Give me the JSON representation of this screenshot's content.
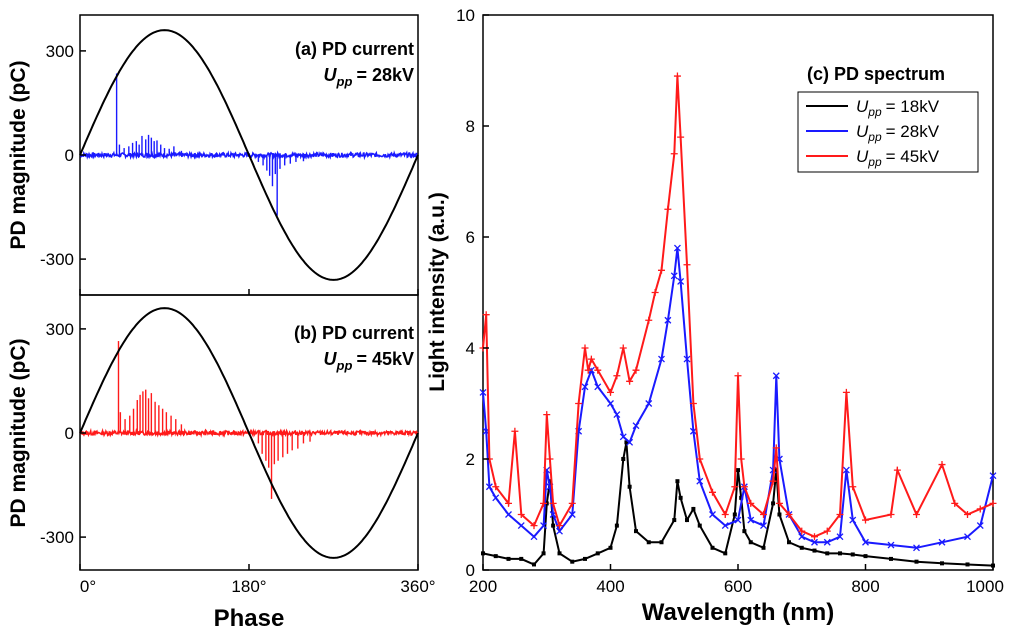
{
  "chart_data": [
    {
      "type": "line",
      "panel": "a",
      "title": "(a) PD current",
      "condition": {
        "var": "U",
        "sub": "pp",
        "value": "= 28kV"
      },
      "xlabel": "",
      "ylabel": "PD magnitude (pC)",
      "xlim": [
        0,
        360
      ],
      "ylim": [
        -400,
        400
      ],
      "yticks": [
        "300",
        "0",
        "-300"
      ],
      "ytick_values": [
        300,
        0,
        -300
      ],
      "reference_sine_amplitude": 360,
      "pd_color": "#1a1aff",
      "sine_color": "#000000",
      "pulses": [
        {
          "x": 39,
          "y": 235
        },
        {
          "x": 42,
          "y": 30
        },
        {
          "x": 47,
          "y": 20
        },
        {
          "x": 52,
          "y": 25
        },
        {
          "x": 56,
          "y": 35
        },
        {
          "x": 60,
          "y": 40
        },
        {
          "x": 63,
          "y": 30
        },
        {
          "x": 66,
          "y": 55
        },
        {
          "x": 70,
          "y": 45
        },
        {
          "x": 73,
          "y": 58
        },
        {
          "x": 76,
          "y": 50
        },
        {
          "x": 79,
          "y": 40
        },
        {
          "x": 82,
          "y": 42
        },
        {
          "x": 86,
          "y": 30
        },
        {
          "x": 90,
          "y": 20
        },
        {
          "x": 95,
          "y": 18
        },
        {
          "x": 100,
          "y": 25
        },
        {
          "x": 108,
          "y": 12
        },
        {
          "x": 190,
          "y": -20
        },
        {
          "x": 195,
          "y": -30
        },
        {
          "x": 199,
          "y": -45
        },
        {
          "x": 202,
          "y": -60
        },
        {
          "x": 205,
          "y": -90
        },
        {
          "x": 208,
          "y": -55
        },
        {
          "x": 210,
          "y": -175
        },
        {
          "x": 213,
          "y": -40
        },
        {
          "x": 218,
          "y": -30
        },
        {
          "x": 224,
          "y": -25
        },
        {
          "x": 230,
          "y": -20
        },
        {
          "x": 238,
          "y": -18
        }
      ]
    },
    {
      "type": "line",
      "panel": "b",
      "title": "(b) PD current",
      "condition": {
        "var": "U",
        "sub": "pp",
        "value": "= 45kV"
      },
      "xlabel": "Phase",
      "ylabel": "PD magnitude (pC)",
      "xlim": [
        0,
        360
      ],
      "ylim": [
        -400,
        400
      ],
      "xticks": [
        "0°",
        "180°",
        "360°"
      ],
      "xtick_values": [
        0,
        180,
        360
      ],
      "yticks": [
        "300",
        "0",
        "-300"
      ],
      "ytick_values": [
        300,
        0,
        -300
      ],
      "reference_sine_amplitude": 360,
      "pd_color": "#ff1a1a",
      "sine_color": "#000000",
      "pulses": [
        {
          "x": 41,
          "y": 265
        },
        {
          "x": 43,
          "y": 60
        },
        {
          "x": 48,
          "y": 40
        },
        {
          "x": 53,
          "y": 50
        },
        {
          "x": 57,
          "y": 70
        },
        {
          "x": 61,
          "y": 95
        },
        {
          "x": 64,
          "y": 110
        },
        {
          "x": 67,
          "y": 120
        },
        {
          "x": 70,
          "y": 125
        },
        {
          "x": 73,
          "y": 100
        },
        {
          "x": 76,
          "y": 115
        },
        {
          "x": 80,
          "y": 90
        },
        {
          "x": 84,
          "y": 80
        },
        {
          "x": 88,
          "y": 70
        },
        {
          "x": 92,
          "y": 60
        },
        {
          "x": 97,
          "y": 50
        },
        {
          "x": 102,
          "y": 40
        },
        {
          "x": 108,
          "y": 25
        },
        {
          "x": 190,
          "y": -30
        },
        {
          "x": 194,
          "y": -60
        },
        {
          "x": 198,
          "y": -80
        },
        {
          "x": 201,
          "y": -100
        },
        {
          "x": 204,
          "y": -190
        },
        {
          "x": 207,
          "y": -90
        },
        {
          "x": 211,
          "y": -80
        },
        {
          "x": 216,
          "y": -70
        },
        {
          "x": 221,
          "y": -60
        },
        {
          "x": 226,
          "y": -50
        },
        {
          "x": 232,
          "y": -45
        },
        {
          "x": 238,
          "y": -30
        },
        {
          "x": 245,
          "y": -25
        }
      ]
    },
    {
      "type": "line",
      "panel": "c",
      "title": "(c) PD spectrum",
      "xlabel": "Wavelength (nm)",
      "ylabel": "Light intensity (a.u.)",
      "xlim": [
        200,
        1000
      ],
      "ylim": [
        0,
        10
      ],
      "xticks": [
        "200",
        "400",
        "600",
        "800",
        "1000"
      ],
      "xtick_values": [
        200,
        400,
        600,
        800,
        1000
      ],
      "yticks": [
        "0",
        "2",
        "4",
        "6",
        "8",
        "10"
      ],
      "ytick_values": [
        0,
        2,
        4,
        6,
        8,
        10
      ],
      "legend_position": "top-right",
      "series": [
        {
          "name": "18kV",
          "legend": {
            "var": "U",
            "sub": "pp",
            "value": "= 18kV"
          },
          "color": "#000000",
          "x": [
            200,
            220,
            240,
            260,
            280,
            295,
            300,
            305,
            310,
            320,
            340,
            360,
            380,
            400,
            410,
            420,
            425,
            430,
            440,
            460,
            480,
            500,
            505,
            510,
            520,
            530,
            540,
            560,
            580,
            595,
            600,
            605,
            610,
            620,
            640,
            655,
            660,
            665,
            680,
            700,
            720,
            740,
            760,
            780,
            800,
            840,
            880,
            920,
            960,
            1000
          ],
          "y": [
            0.3,
            0.25,
            0.2,
            0.2,
            0.1,
            0.3,
            1.2,
            1.6,
            0.8,
            0.3,
            0.15,
            0.2,
            0.3,
            0.4,
            0.8,
            2.0,
            2.3,
            1.5,
            0.7,
            0.5,
            0.5,
            0.9,
            1.6,
            1.3,
            0.9,
            1.1,
            0.8,
            0.4,
            0.3,
            1.0,
            1.8,
            1.3,
            0.7,
            0.5,
            0.4,
            1.2,
            1.8,
            1.0,
            0.5,
            0.4,
            0.35,
            0.3,
            0.3,
            0.28,
            0.25,
            0.2,
            0.15,
            0.12,
            0.1,
            0.08
          ]
        },
        {
          "name": "28kV",
          "legend": {
            "var": "U",
            "sub": "pp",
            "value": "= 28kV"
          },
          "color": "#1a1aff",
          "x": [
            200,
            205,
            210,
            220,
            240,
            260,
            280,
            295,
            300,
            305,
            310,
            320,
            340,
            350,
            360,
            370,
            380,
            400,
            410,
            420,
            430,
            440,
            460,
            480,
            490,
            500,
            505,
            510,
            520,
            530,
            540,
            560,
            580,
            600,
            610,
            620,
            640,
            655,
            660,
            665,
            680,
            700,
            720,
            740,
            760,
            770,
            780,
            800,
            840,
            880,
            920,
            960,
            980,
            1000
          ],
          "y": [
            3.2,
            2.5,
            1.5,
            1.3,
            1.0,
            0.8,
            0.6,
            0.8,
            1.8,
            1.5,
            1.0,
            0.7,
            1.0,
            2.5,
            3.3,
            3.6,
            3.3,
            3.0,
            2.8,
            2.4,
            2.3,
            2.6,
            3.0,
            3.8,
            4.5,
            5.3,
            5.8,
            5.2,
            3.8,
            2.5,
            1.6,
            1.0,
            0.8,
            0.9,
            1.5,
            0.9,
            0.8,
            1.8,
            3.5,
            2.0,
            1.0,
            0.6,
            0.5,
            0.5,
            0.6,
            1.8,
            0.9,
            0.5,
            0.45,
            0.4,
            0.5,
            0.6,
            0.8,
            1.7
          ]
        },
        {
          "name": "45kV",
          "legend": {
            "var": "U",
            "sub": "pp",
            "value": "= 45kV"
          },
          "color": "#ff1a1a",
          "x": [
            200,
            205,
            210,
            220,
            240,
            250,
            260,
            280,
            295,
            300,
            305,
            310,
            320,
            340,
            350,
            360,
            365,
            370,
            380,
            400,
            410,
            420,
            430,
            440,
            460,
            470,
            480,
            490,
            500,
            505,
            510,
            520,
            530,
            540,
            560,
            580,
            595,
            600,
            605,
            610,
            620,
            640,
            655,
            660,
            665,
            680,
            700,
            720,
            740,
            760,
            770,
            780,
            800,
            840,
            850,
            880,
            920,
            940,
            960,
            980,
            1000
          ],
          "y": [
            4.0,
            4.6,
            2.0,
            1.5,
            1.2,
            2.5,
            1.0,
            0.8,
            1.2,
            2.8,
            2.0,
            1.2,
            0.8,
            1.2,
            3.0,
            4.0,
            3.6,
            3.8,
            3.6,
            3.2,
            3.5,
            4.0,
            3.4,
            3.6,
            4.5,
            5.0,
            5.4,
            6.5,
            7.5,
            8.9,
            7.8,
            5.5,
            3.0,
            2.0,
            1.4,
            1.0,
            1.5,
            3.5,
            2.0,
            1.5,
            1.2,
            1.0,
            1.6,
            2.2,
            1.2,
            1.0,
            0.7,
            0.6,
            0.7,
            1.0,
            3.2,
            1.5,
            0.9,
            1.0,
            1.8,
            1.0,
            1.9,
            1.2,
            1.0,
            1.1,
            1.2
          ]
        }
      ]
    }
  ]
}
